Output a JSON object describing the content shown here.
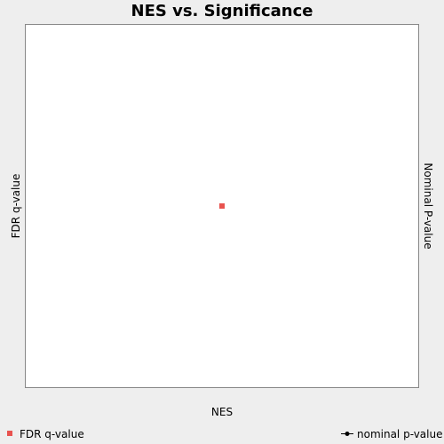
{
  "chart_data": {
    "type": "scatter",
    "title": "NES vs. Significance",
    "xlabel": "NES",
    "ylabel": "FDR q-value",
    "y2label": "Nominal P-value",
    "series": [
      {
        "name": "FDR q-value",
        "color": "#e8534f",
        "marker": "square",
        "points": [
          {
            "x": 0,
            "y": 0.5
          }
        ]
      },
      {
        "name": "nominal p-value",
        "color": "#000000",
        "marker": "line-dot",
        "points": []
      }
    ],
    "xlim": [
      -1,
      1
    ],
    "ylim": [
      0,
      1
    ],
    "grid": false,
    "legend": "bottom"
  }
}
